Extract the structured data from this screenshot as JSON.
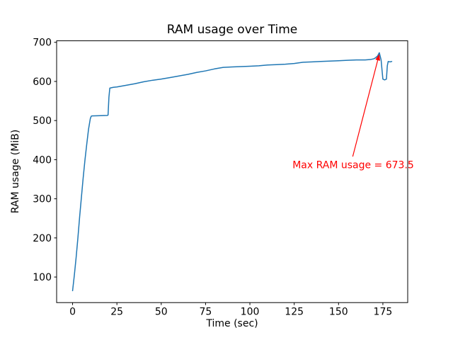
{
  "figure": {
    "background": "#ffffff"
  },
  "chart_data": {
    "type": "line",
    "title": "RAM usage over Time",
    "xlabel": "Time (sec)",
    "ylabel": "RAM usage (MiB)",
    "grid": false,
    "xlim": [
      -9,
      189
    ],
    "ylim": [
      34.6,
      703.9
    ],
    "xticks": [
      0,
      25,
      50,
      75,
      100,
      125,
      150,
      175
    ],
    "yticks": [
      100,
      200,
      300,
      400,
      500,
      600,
      700
    ],
    "series": [
      {
        "name": "RAM usage",
        "color": "#1f77b4",
        "x": [
          0,
          1,
          2,
          3,
          4,
          5,
          6,
          7,
          8,
          9,
          10,
          10.5,
          11,
          19.5,
          20,
          20.5,
          21,
          23,
          25,
          30,
          35,
          40,
          45,
          50,
          55,
          60,
          65,
          70,
          75,
          80,
          85,
          90,
          95,
          100,
          105,
          110,
          115,
          120,
          125,
          130,
          135,
          140,
          145,
          150,
          155,
          160,
          165,
          168,
          170,
          171,
          172,
          173,
          174,
          174.5,
          175,
          176,
          177,
          177.5,
          178,
          179,
          180
        ],
        "y": [
          65,
          105,
          150,
          200,
          255,
          305,
          355,
          400,
          440,
          478,
          505,
          511,
          512,
          513,
          514,
          560,
          583,
          585,
          586,
          590,
          594,
          599,
          603,
          606,
          610,
          614,
          618,
          623,
          627,
          632,
          636,
          637,
          638,
          639,
          640,
          642,
          643,
          644,
          646,
          649,
          650,
          651,
          652,
          653,
          654,
          655,
          655,
          656,
          658,
          661,
          665,
          673.5,
          655,
          630,
          606,
          604,
          606,
          640,
          651,
          650,
          651
        ]
      }
    ],
    "max_value": 673.5,
    "annotation": {
      "text": "Max RAM usage = 673.5",
      "color": "#ff0000",
      "text_xy": [
        124,
        378
      ],
      "arrow_from": [
        158,
        408
      ],
      "arrow_to": [
        173,
        670
      ]
    }
  }
}
